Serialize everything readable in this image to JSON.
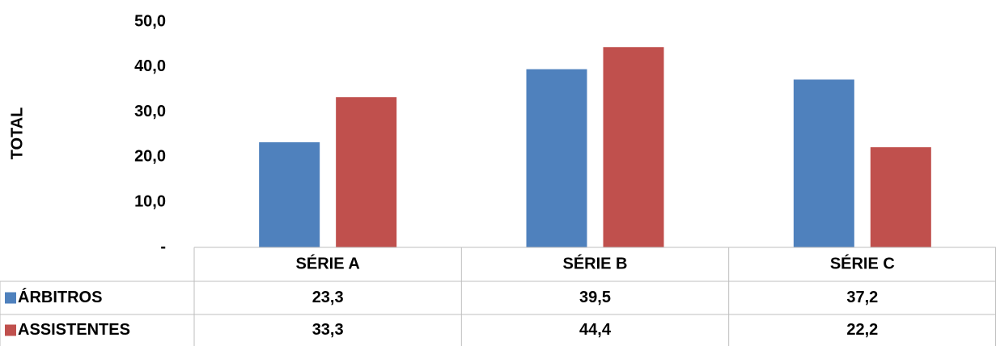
{
  "chart_data": {
    "type": "bar",
    "y_label": "TOTAL",
    "categories": [
      "SÉRIE A",
      "SÉRIE B",
      "SÉRIE C"
    ],
    "series": [
      {
        "name": "ÁRBITROS",
        "color": "#4f81bd",
        "values": [
          23.3,
          39.5,
          37.2
        ],
        "value_labels": [
          "23,3",
          "39,5",
          "37,2"
        ]
      },
      {
        "name": "ASSISTENTES",
        "color": "#c0504d",
        "values": [
          33.3,
          44.4,
          22.2
        ],
        "value_labels": [
          "33,3",
          "44,4",
          "22,2"
        ]
      }
    ],
    "ylim": [
      0,
      50
    ],
    "yticks": [
      {
        "value": 0,
        "label": "-"
      },
      {
        "value": 10,
        "label": "10,0"
      },
      {
        "value": 20,
        "label": "20,0"
      },
      {
        "value": 30,
        "label": "30,0"
      },
      {
        "value": 40,
        "label": "40,0"
      },
      {
        "value": 50,
        "label": "50,0"
      }
    ],
    "data_table": true
  }
}
